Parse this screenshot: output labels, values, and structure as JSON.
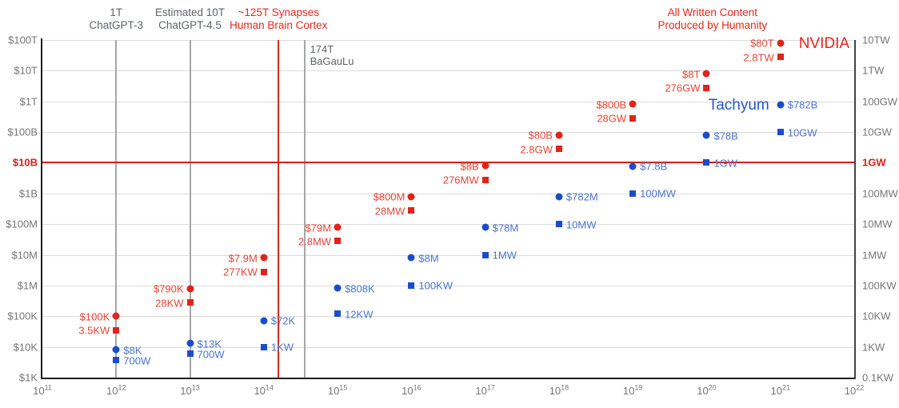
{
  "chart_data": {
    "type": "scatter",
    "title": "",
    "x_axis": {
      "scale": "log",
      "tick_exponents": [
        11,
        12,
        13,
        14,
        15,
        16,
        17,
        18,
        19,
        20,
        21,
        22
      ],
      "tick_base": "10"
    },
    "y_axis_left": {
      "labels": [
        "$100T",
        "$10T",
        "$1T",
        "$100B",
        "$10B",
        "$1B",
        "$100M",
        "$10M",
        "$1M",
        "$100K",
        "$10K",
        "$1K"
      ],
      "highlight_index": 4,
      "highlight_color": "#d7201d"
    },
    "y_axis_right": {
      "labels": [
        "10TW",
        "1TW",
        "100GW",
        "10GW",
        "1GW",
        "100MW",
        "10MW",
        "1MW",
        "100KW",
        "10KW",
        "1KW",
        "0.1KW"
      ],
      "highlight_index": 4,
      "highlight_color": "#d7201d"
    },
    "series": [
      {
        "name": "NVIDIA",
        "marker_color": "#e3231a",
        "label_color": "#e94235",
        "brand_color": "#e8231d",
        "label_side": "left",
        "points": [
          {
            "x_exponent": 12,
            "price_label": "$100K",
            "price_usd": 100000,
            "power_label": "3.5KW",
            "power_watts": 3500
          },
          {
            "x_exponent": 13,
            "price_label": "$790K",
            "price_usd": 790000,
            "power_label": "28KW",
            "power_watts": 28000
          },
          {
            "x_exponent": 14,
            "price_label": "$7.9M",
            "price_usd": 7900000,
            "power_label": "277KW",
            "power_watts": 277000
          },
          {
            "x_exponent": 15,
            "price_label": "$79M",
            "price_usd": 79000000,
            "power_label": "2.8MW",
            "power_watts": 2800000
          },
          {
            "x_exponent": 16,
            "price_label": "$800M",
            "price_usd": 800000000,
            "power_label": "28MW",
            "power_watts": 28000000
          },
          {
            "x_exponent": 17,
            "price_label": "$8B",
            "price_usd": 8000000000.0,
            "power_label": "276MW",
            "power_watts": 276000000.0
          },
          {
            "x_exponent": 18,
            "price_label": "$80B",
            "price_usd": 80000000000.0,
            "power_label": "2.8GW",
            "power_watts": 2800000000.0
          },
          {
            "x_exponent": 19,
            "price_label": "$800B",
            "price_usd": 800000000000.0,
            "power_label": "28GW",
            "power_watts": 28000000000.0
          },
          {
            "x_exponent": 20,
            "price_label": "$8T",
            "price_usd": 8000000000000.0,
            "power_label": "276GW",
            "power_watts": 276000000000.0
          },
          {
            "x_exponent": 21,
            "price_label": "$80T",
            "price_usd": 80000000000000.0,
            "power_label": "2.8TW",
            "power_watts": 2800000000000.0
          }
        ]
      },
      {
        "name": "Tachyum",
        "marker_color": "#1a4ec9",
        "label_color": "#4b73c9",
        "brand_color": "#2456cc",
        "label_side": "right",
        "points": [
          {
            "x_exponent": 12,
            "price_label": "$8K",
            "price_usd": 8000,
            "power_label": "700W",
            "power_watts": 700
          },
          {
            "x_exponent": 13,
            "price_label": "$13K",
            "price_usd": 13000,
            "power_label": "700W",
            "power_watts": 700
          },
          {
            "x_exponent": 14,
            "price_label": "$72K",
            "price_usd": 72000,
            "power_label": "1KW",
            "power_watts": 1000
          },
          {
            "x_exponent": 15,
            "price_label": "$808K",
            "price_usd": 808000,
            "power_label": "12KW",
            "power_watts": 12000
          },
          {
            "x_exponent": 16,
            "price_label": "$8M",
            "price_usd": 8000000,
            "power_label": "100KW",
            "power_watts": 100000
          },
          {
            "x_exponent": 17,
            "price_label": "$78M",
            "price_usd": 78000000,
            "power_label": "1MW",
            "power_watts": 1000000
          },
          {
            "x_exponent": 18,
            "price_label": "$782M",
            "price_usd": 782000000,
            "power_label": "10MW",
            "power_watts": 10000000
          },
          {
            "x_exponent": 19,
            "price_label": "$7.8B",
            "price_usd": 7800000000.0,
            "power_label": "100MW",
            "power_watts": 100000000.0
          },
          {
            "x_exponent": 20,
            "price_label": "$78B",
            "price_usd": 78000000000.0,
            "power_label": "1GW",
            "power_watts": 1000000000.0
          },
          {
            "x_exponent": 21,
            "price_label": "$782B",
            "price_usd": 782000000000.0,
            "power_label": "10GW",
            "power_watts": 10000000000.0
          }
        ]
      }
    ],
    "reference_lines": {
      "vertical": [
        {
          "id": "chatgpt3",
          "label_lines": [
            "1T",
            "ChatGPT-3"
          ],
          "x_exponent": 12,
          "line_color": "#a6a6a6",
          "text_color": "#5f6368",
          "label_position": "above"
        },
        {
          "id": "chatgpt45",
          "label_lines": [
            "Estimated 10T",
            "ChatGPT-4.5"
          ],
          "x_exponent": 13,
          "line_color": "#a6a6a6",
          "text_color": "#5f6368",
          "label_position": "above"
        },
        {
          "id": "human-brain-cortex",
          "label_lines": [
            "~125T Synapses",
            "Human Brain Cortex"
          ],
          "x_exponent": 14.2,
          "line_color": "#dd2b20",
          "text_color": "#e8261c",
          "label_position": "above"
        },
        {
          "id": "bagaulu",
          "label_lines": [
            "174T",
            "BaGauLu"
          ],
          "x_exponent": 14.55,
          "line_color": "#a6a6a6",
          "text_color": "#5f6368",
          "label_position": "inside"
        }
      ],
      "horizontal": {
        "price_usd": 10000000000.0,
        "price_label": "$10B",
        "power_label": "1GW",
        "color": "#d7201d"
      }
    },
    "annotations": [
      {
        "id": "all-written-content",
        "label_lines": [
          "All Written Content",
          "Produced by Humanity"
        ],
        "x_exponent": 20.08,
        "text_color": "#e8261c"
      }
    ]
  }
}
